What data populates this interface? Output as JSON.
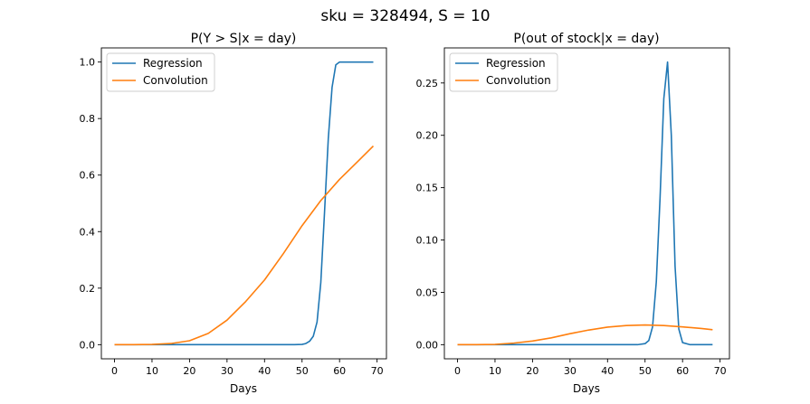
{
  "suptitle": "sku = 328494, S = 10",
  "colors": {
    "regression": "#1f77b4",
    "convolution": "#ff7f0e"
  },
  "chart_data": [
    {
      "type": "line",
      "title": "P(Y > S|x = day)",
      "xlabel": "Days",
      "ylabel": "",
      "xlim": [
        -3.5,
        72.5
      ],
      "ylim": [
        -0.05,
        1.05
      ],
      "xticks": [
        0,
        10,
        20,
        30,
        40,
        50,
        60,
        70
      ],
      "yticks": [
        0.0,
        0.2,
        0.4,
        0.6,
        0.8,
        1.0
      ],
      "ytick_labels": [
        "0.0",
        "0.2",
        "0.4",
        "0.6",
        "0.8",
        "1.0"
      ],
      "legend": "top-left",
      "series": [
        {
          "name": "Regression",
          "x": [
            0,
            10,
            20,
            30,
            40,
            48,
            50,
            51,
            52,
            53,
            54,
            55,
            56,
            57,
            58,
            59,
            60,
            62,
            65,
            69
          ],
          "y": [
            0,
            0,
            0,
            0,
            0,
            0,
            0.001,
            0.004,
            0.012,
            0.03,
            0.08,
            0.22,
            0.47,
            0.73,
            0.91,
            0.99,
            1.0,
            1.0,
            1.0,
            1.0
          ]
        },
        {
          "name": "Convolution",
          "x": [
            0,
            5,
            10,
            15,
            20,
            25,
            30,
            35,
            40,
            45,
            50,
            55,
            60,
            65,
            69
          ],
          "y": [
            0,
            0,
            0.001,
            0.004,
            0.014,
            0.04,
            0.087,
            0.153,
            0.229,
            0.322,
            0.421,
            0.51,
            0.585,
            0.65,
            0.703
          ]
        }
      ]
    },
    {
      "type": "line",
      "title": "P(out of stock|x = day)",
      "xlabel": "Days",
      "ylabel": "",
      "xlim": [
        -3.5,
        72.5
      ],
      "ylim": [
        -0.0135,
        0.2835
      ],
      "xticks": [
        0,
        10,
        20,
        30,
        40,
        50,
        60,
        70
      ],
      "yticks": [
        0.0,
        0.05,
        0.1,
        0.15,
        0.2,
        0.25
      ],
      "ytick_labels": [
        "0.00",
        "0.05",
        "0.10",
        "0.15",
        "0.20",
        "0.25"
      ],
      "legend": "top-left",
      "series": [
        {
          "name": "Regression",
          "x": [
            0,
            10,
            20,
            30,
            40,
            48,
            50,
            51,
            52,
            53,
            54,
            55,
            56,
            57,
            58,
            59,
            60,
            62,
            65,
            68
          ],
          "y": [
            0,
            0,
            0,
            0,
            0,
            0,
            0.001,
            0.004,
            0.017,
            0.06,
            0.14,
            0.235,
            0.27,
            0.2,
            0.075,
            0.015,
            0.002,
            0,
            0,
            0
          ]
        },
        {
          "name": "Convolution",
          "x": [
            0,
            5,
            10,
            15,
            20,
            25,
            30,
            35,
            40,
            45,
            50,
            55,
            60,
            65,
            68
          ],
          "y": [
            0,
            0,
            0.0003,
            0.0015,
            0.0035,
            0.0065,
            0.0105,
            0.014,
            0.0168,
            0.0183,
            0.0188,
            0.0183,
            0.017,
            0.0155,
            0.0143
          ]
        }
      ]
    }
  ]
}
